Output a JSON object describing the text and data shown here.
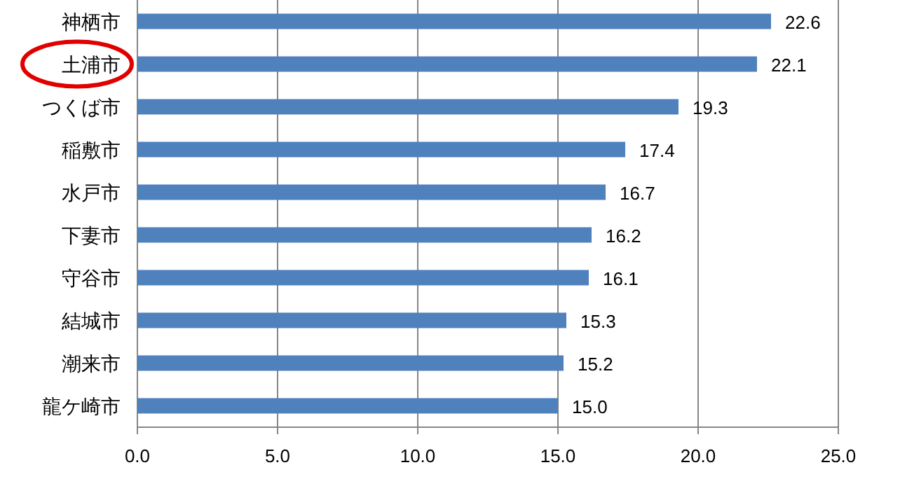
{
  "chart_data": {
    "type": "bar",
    "orientation": "horizontal",
    "categories": [
      "神栖市",
      "土浦市",
      "つくば市",
      "稲敷市",
      "水戸市",
      "下妻市",
      "守谷市",
      "結城市",
      "潮来市",
      "龍ケ崎市"
    ],
    "values": [
      22.6,
      22.1,
      19.3,
      17.4,
      16.7,
      16.2,
      16.1,
      15.3,
      15.2,
      15.0
    ],
    "value_labels": [
      "22.6",
      "22.1",
      "19.3",
      "17.4",
      "16.7",
      "16.2",
      "16.1",
      "15.3",
      "15.2",
      "15.0"
    ],
    "color": "#4f81bd",
    "xlim": [
      0,
      25
    ],
    "xticks": [
      {
        "value": 0,
        "label": "0.0"
      },
      {
        "value": 5,
        "label": "5.0"
      },
      {
        "value": 10,
        "label": "10.0"
      },
      {
        "value": 15,
        "label": "15.0"
      },
      {
        "value": 20,
        "label": "20.0"
      },
      {
        "value": 25,
        "label": "25.0"
      }
    ],
    "grid": "x"
  }
}
